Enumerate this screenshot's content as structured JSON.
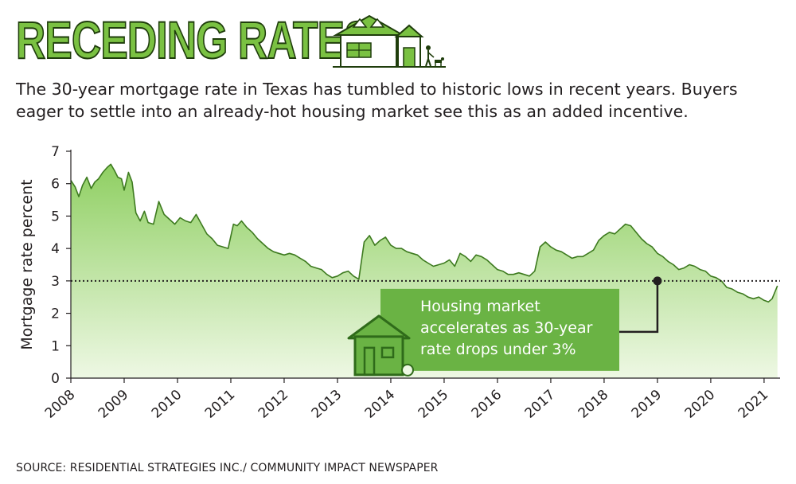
{
  "title": "RECEDING RATES",
  "subtitle": "The 30-year mortgage rate in Texas has tumbled to historic lows in recent years. Buyers eager to settle into an already-hot housing market see this as an added incentive.",
  "source": "SOURCE: RESIDENTIAL STRATEGIES INC./ COMMUNITY IMPACT NEWSPAPER",
  "colors": {
    "accent_green": "#7ac142",
    "dark_green": "#3d7a1f",
    "area_top": "#8fcf62",
    "area_bottom": "#eef8e4",
    "callout_bg": "#6ab344"
  },
  "chart_data": {
    "type": "area",
    "ylabel": "Mortgage rate percent",
    "xlabel": "",
    "ylim": [
      0,
      7
    ],
    "yticks": [
      "0",
      "1",
      "2",
      "3",
      "4",
      "5",
      "6",
      "7"
    ],
    "xticks": [
      "2008",
      "2009",
      "2010",
      "2011",
      "2012",
      "2013",
      "2014",
      "2015",
      "2016",
      "2017",
      "2018",
      "2019",
      "2020",
      "2021"
    ],
    "reference_line": 3,
    "annotation": {
      "lines": [
        "Housing market",
        "accelerates as 30-year",
        "rate drops under 3%"
      ],
      "point": {
        "x": 2019.0,
        "y": 3.0
      }
    },
    "series": [
      {
        "x": [
          2008.0,
          2008.08,
          2008.15,
          2008.22,
          2008.3,
          2008.38,
          2008.45,
          2008.52,
          2008.6,
          2008.68,
          2008.75,
          2008.82,
          2008.88,
          2008.95,
          2009.0,
          2009.08,
          2009.15,
          2009.22,
          2009.3,
          2009.38,
          2009.45,
          2009.55,
          2009.65,
          2009.75,
          2009.85,
          2009.95,
          2010.05,
          2010.15,
          2010.25,
          2010.35,
          2010.45,
          2010.55,
          2010.65,
          2010.75,
          2010.85,
          2010.95,
          2011.05,
          2011.12,
          2011.2,
          2011.3,
          2011.4,
          2011.5,
          2011.6,
          2011.7,
          2011.8,
          2011.9,
          2012.0,
          2012.1,
          2012.2,
          2012.3,
          2012.4,
          2012.5,
          2012.6,
          2012.7,
          2012.8,
          2012.9,
          2013.0,
          2013.1,
          2013.2,
          2013.3,
          2013.4,
          2013.5,
          2013.6,
          2013.7,
          2013.8,
          2013.9,
          2014.0,
          2014.1,
          2014.2,
          2014.3,
          2014.4,
          2014.5,
          2014.6,
          2014.7,
          2014.8,
          2014.9,
          2015.0,
          2015.1,
          2015.2,
          2015.3,
          2015.4,
          2015.5,
          2015.6,
          2015.7,
          2015.8,
          2015.9,
          2016.0,
          2016.1,
          2016.2,
          2016.3,
          2016.4,
          2016.5,
          2016.6,
          2016.7,
          2016.8,
          2016.9,
          2017.0,
          2017.1,
          2017.2,
          2017.3,
          2017.4,
          2017.5,
          2017.6,
          2017.7,
          2017.8,
          2017.9,
          2018.0,
          2018.1,
          2018.2,
          2018.3,
          2018.4,
          2018.5,
          2018.6,
          2018.7,
          2018.8,
          2018.9,
          2019.0,
          2019.1,
          2019.2,
          2019.3,
          2019.4,
          2019.5,
          2019.6,
          2019.7,
          2019.8,
          2019.9,
          2020.0,
          2020.1,
          2020.2,
          2020.3,
          2020.4,
          2020.5,
          2020.6,
          2020.7,
          2020.8,
          2020.9,
          2021.0,
          2021.08,
          2021.15,
          2021.25
        ],
        "values": [
          6.1,
          5.9,
          5.6,
          5.95,
          6.2,
          5.85,
          6.05,
          6.15,
          6.35,
          6.5,
          6.6,
          6.4,
          6.2,
          6.15,
          5.8,
          6.35,
          6.05,
          5.1,
          4.85,
          5.15,
          4.8,
          4.75,
          5.45,
          5.05,
          4.9,
          4.75,
          4.95,
          4.85,
          4.8,
          5.05,
          4.75,
          4.45,
          4.3,
          4.1,
          4.05,
          4.0,
          4.75,
          4.7,
          4.85,
          4.65,
          4.5,
          4.3,
          4.15,
          4.0,
          3.9,
          3.85,
          3.8,
          3.85,
          3.8,
          3.7,
          3.6,
          3.45,
          3.4,
          3.35,
          3.2,
          3.1,
          3.15,
          3.25,
          3.3,
          3.15,
          3.05,
          4.2,
          4.4,
          4.1,
          4.25,
          4.35,
          4.1,
          4.0,
          4.0,
          3.9,
          3.85,
          3.8,
          3.65,
          3.55,
          3.45,
          3.5,
          3.55,
          3.65,
          3.45,
          3.85,
          3.75,
          3.6,
          3.8,
          3.75,
          3.65,
          3.5,
          3.35,
          3.3,
          3.2,
          3.2,
          3.25,
          3.2,
          3.15,
          3.3,
          4.05,
          4.2,
          4.05,
          3.95,
          3.9,
          3.8,
          3.7,
          3.75,
          3.75,
          3.85,
          3.95,
          4.25,
          4.4,
          4.5,
          4.45,
          4.6,
          4.75,
          4.7,
          4.5,
          4.3,
          4.15,
          4.05,
          3.85,
          3.75,
          3.6,
          3.5,
          3.35,
          3.4,
          3.5,
          3.45,
          3.35,
          3.3,
          3.15,
          3.1,
          3.0,
          2.8,
          2.75,
          2.65,
          2.6,
          2.5,
          2.45,
          2.5,
          2.4,
          2.35,
          2.45,
          2.85
        ]
      }
    ]
  }
}
